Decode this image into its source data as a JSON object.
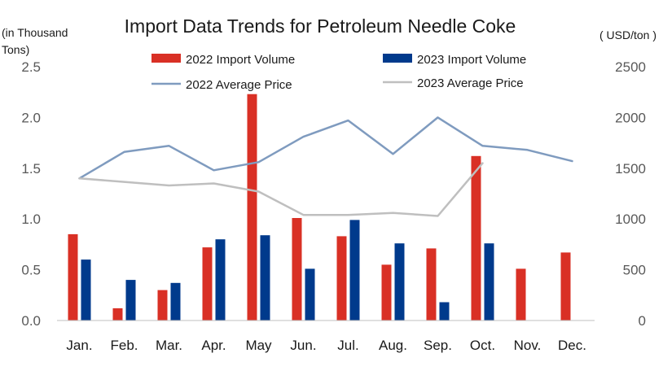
{
  "chart_data": {
    "type": "bar",
    "title": "Import Data Trends for Petroleum Needle Coke",
    "categories": [
      "Jan.",
      "Feb.",
      "Mar.",
      "Apr.",
      "May",
      "Jun.",
      "Jul.",
      "Aug.",
      "Sep.",
      "Oct.",
      "Nov.",
      "Dec."
    ],
    "y_left": {
      "label_line1": "(in Thousand",
      "label_line2": "Tons)",
      "ticks": [
        "0.0",
        "0.5",
        "1.0",
        "1.5",
        "2.0",
        "2.5"
      ],
      "range": [
        0,
        2.5
      ]
    },
    "y_right": {
      "label": "( USD/ton )",
      "ticks": [
        "0",
        "500",
        "1000",
        "1500",
        "2000",
        "2500"
      ],
      "range": [
        0,
        2500
      ]
    },
    "series": [
      {
        "name": "2022 Import Volume",
        "kind": "bar",
        "axis": "left",
        "color": "#d93025",
        "values": [
          0.85,
          0.12,
          0.3,
          0.72,
          2.23,
          1.01,
          0.83,
          0.55,
          0.71,
          1.62,
          0.51,
          0.67
        ]
      },
      {
        "name": "2023 Import Volume",
        "kind": "bar",
        "axis": "left",
        "color": "#003a8c",
        "values": [
          0.6,
          0.4,
          0.37,
          0.8,
          0.84,
          0.51,
          0.99,
          0.76,
          0.18,
          0.76,
          null,
          null
        ]
      },
      {
        "name": "2022 Average Price",
        "kind": "line",
        "axis": "right",
        "color": "#7f9bbf",
        "values": [
          1400,
          1660,
          1720,
          1480,
          1560,
          1810,
          1970,
          1640,
          2000,
          1720,
          1680,
          1570
        ]
      },
      {
        "name": "2023 Average Price",
        "kind": "line",
        "axis": "right",
        "color": "#bfbfbf",
        "values": [
          1400,
          1365,
          1330,
          1350,
          1270,
          1040,
          1040,
          1060,
          1030,
          1550,
          null,
          null
        ]
      }
    ],
    "legend_position": "top",
    "grid": false
  }
}
